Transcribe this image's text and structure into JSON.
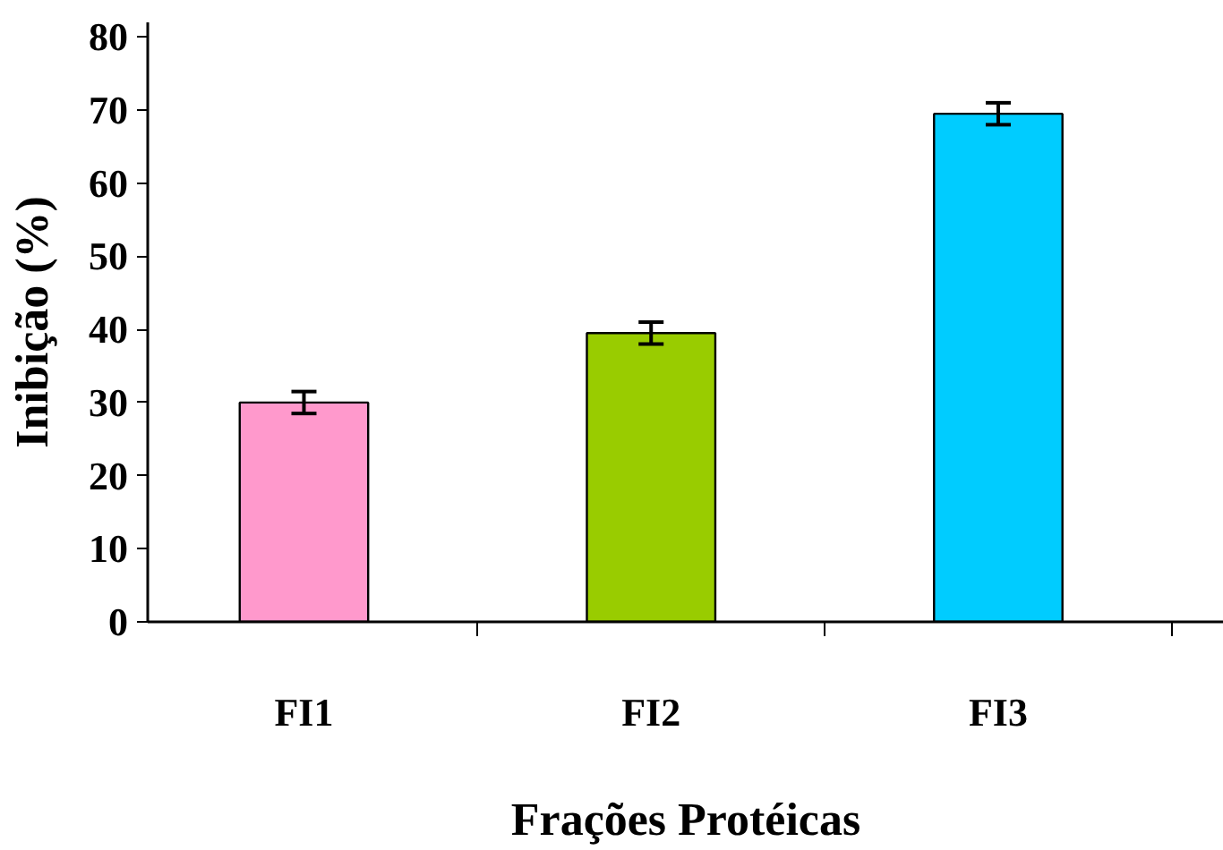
{
  "chart_data": {
    "type": "bar",
    "xlabel": "Frações Protéicas",
    "ylabel": "Inibição (%)",
    "categories": [
      "FI1",
      "FI2",
      "FI3"
    ],
    "values": [
      30,
      39.5,
      69.5
    ],
    "errors": [
      1.5,
      1.5,
      1.5
    ],
    "colors": [
      "#ff99cc",
      "#99cc00",
      "#00ccff"
    ],
    "ylim": [
      0,
      82
    ],
    "yticks": [
      0,
      10,
      20,
      30,
      40,
      50,
      60,
      70,
      80
    ],
    "grid": false
  }
}
